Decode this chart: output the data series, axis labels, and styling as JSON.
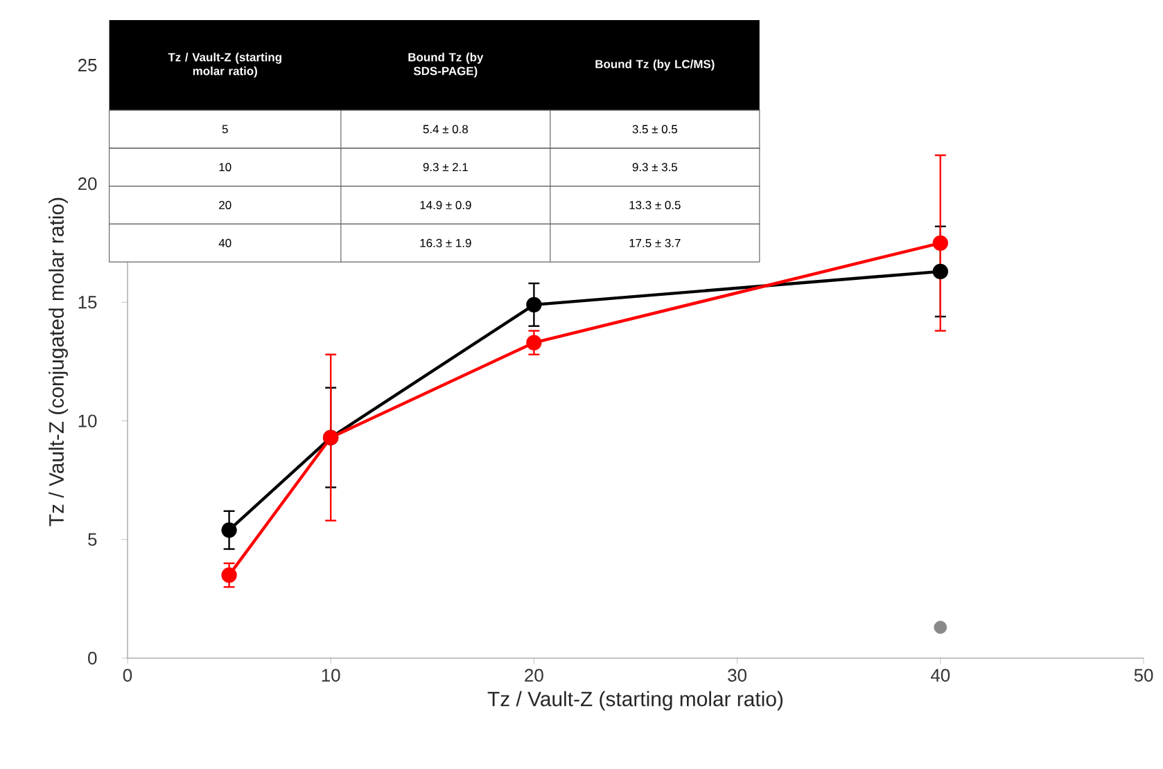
{
  "chart_data": {
    "type": "line",
    "xlabel": "Tz / Vault-Z (starting molar ratio)",
    "ylabel": "Tz / Vault-Z (conjugated molar ratio)",
    "x": [
      5,
      10,
      20,
      40
    ],
    "xlim": [
      0,
      50
    ],
    "xticks": [
      0,
      10,
      20,
      30,
      40,
      50
    ],
    "ylim": [
      0,
      25
    ],
    "yticks": [
      0,
      5,
      10,
      15,
      20,
      25
    ],
    "marker": "circle",
    "line_style": "solid",
    "series": [
      {
        "color": "#000000",
        "values": [
          5.4,
          9.3,
          14.9,
          16.3
        ],
        "errors": [
          0.8,
          2.1,
          0.9,
          1.9
        ]
      },
      {
        "color": "#ff0000",
        "values": [
          3.5,
          9.3,
          13.3,
          17.5
        ],
        "errors": [
          0.5,
          3.5,
          0.5,
          3.7
        ]
      },
      {
        "type": "scatter",
        "color": "#898989",
        "x": [
          40
        ],
        "values": [
          1.3
        ]
      }
    ],
    "annotations": [
      "Tz / Vault-Z (starting molar ratio)",
      "Bound Tz (by SDS-PAGE)",
      "Bound Tz (by LC/MS)",
      "5",
      "5.4 ± 0.8",
      "3.5 ± 0.5",
      "10",
      "9.3 ± 2.1",
      "9.3 ± 3.5",
      "20",
      "14.9 ± 0.9",
      "13.3 ± 0.5",
      "40",
      "16.3 ± 1.9",
      "17.5 ± 3.7"
    ]
  }
}
